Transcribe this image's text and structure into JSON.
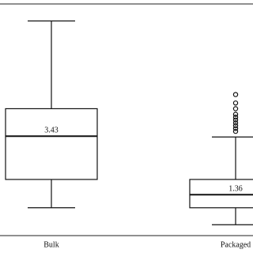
{
  "chart_data": {
    "type": "box",
    "categories": [
      "Bulk",
      "Packaged"
    ],
    "boxes": [
      {
        "min": 0.9,
        "q1": 1.9,
        "median": 3.43,
        "q3": 4.4,
        "max": 7.5,
        "outliers": []
      },
      {
        "min": 0.3,
        "q1": 0.9,
        "median": 1.36,
        "q3": 1.9,
        "max": 3.4,
        "outliers": [
          3.6,
          3.7,
          3.8,
          3.9,
          4.0,
          4.1,
          4.2,
          4.4,
          4.6,
          4.9
        ]
      }
    ],
    "ylim": [
      0,
      8.1
    ],
    "color": "#ffffff"
  }
}
